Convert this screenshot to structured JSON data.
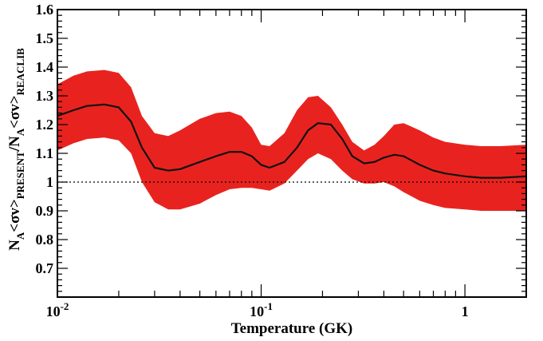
{
  "chart_data": {
    "type": "line",
    "xlabel": "Temperature (GK)",
    "ylabel": {
      "parts": [
        "N",
        "A",
        "<σv>",
        "PRESENT",
        "/N",
        "A",
        "<σv>",
        "REACLIB"
      ]
    },
    "xscale": "log",
    "xlim": [
      0.01,
      2.0
    ],
    "ylim": [
      0.6,
      1.6
    ],
    "x_ticks": [
      {
        "value": 0.01,
        "base": "10",
        "exp": "-2"
      },
      {
        "value": 0.1,
        "base": "10",
        "exp": "-1"
      },
      {
        "value": 1,
        "label": "1"
      }
    ],
    "y_ticks": [
      {
        "value": 0.7,
        "label": "0.7"
      },
      {
        "value": 0.8,
        "label": "0.8"
      },
      {
        "value": 0.9,
        "label": "0.9"
      },
      {
        "value": 1.0,
        "label": "1"
      },
      {
        "value": 1.1,
        "label": "1.1"
      },
      {
        "value": 1.2,
        "label": "1.2"
      },
      {
        "value": 1.3,
        "label": "1.3"
      },
      {
        "value": 1.4,
        "label": "1.4"
      },
      {
        "value": 1.5,
        "label": "1.5"
      },
      {
        "value": 1.6,
        "label": "1.6"
      }
    ],
    "reference_line": {
      "y": 1.0,
      "style": "dotted"
    },
    "band_color": "#e8231f",
    "line_color": "#111111",
    "x": [
      0.01,
      0.012,
      0.014,
      0.017,
      0.02,
      0.023,
      0.026,
      0.03,
      0.035,
      0.04,
      0.05,
      0.06,
      0.07,
      0.08,
      0.09,
      0.1,
      0.11,
      0.13,
      0.15,
      0.17,
      0.19,
      0.22,
      0.25,
      0.28,
      0.32,
      0.36,
      0.4,
      0.45,
      0.5,
      0.6,
      0.7,
      0.8,
      1.0,
      1.2,
      1.5,
      2.0
    ],
    "series": [
      {
        "name": "ratio",
        "role": "line",
        "values": [
          1.23,
          1.25,
          1.265,
          1.27,
          1.26,
          1.21,
          1.12,
          1.05,
          1.04,
          1.045,
          1.07,
          1.09,
          1.105,
          1.105,
          1.09,
          1.06,
          1.05,
          1.07,
          1.12,
          1.18,
          1.205,
          1.2,
          1.15,
          1.09,
          1.065,
          1.07,
          1.085,
          1.095,
          1.09,
          1.06,
          1.04,
          1.03,
          1.02,
          1.015,
          1.015,
          1.02
        ]
      },
      {
        "name": "upper",
        "role": "band_upper",
        "values": [
          1.34,
          1.37,
          1.385,
          1.39,
          1.38,
          1.33,
          1.23,
          1.17,
          1.16,
          1.18,
          1.22,
          1.24,
          1.245,
          1.23,
          1.19,
          1.13,
          1.125,
          1.17,
          1.25,
          1.295,
          1.3,
          1.26,
          1.2,
          1.14,
          1.11,
          1.13,
          1.16,
          1.2,
          1.205,
          1.18,
          1.155,
          1.14,
          1.13,
          1.125,
          1.125,
          1.13
        ]
      },
      {
        "name": "lower",
        "role": "band_lower",
        "values": [
          1.11,
          1.135,
          1.15,
          1.155,
          1.145,
          1.1,
          1.0,
          0.93,
          0.905,
          0.905,
          0.925,
          0.955,
          0.975,
          0.98,
          0.98,
          0.975,
          0.97,
          0.995,
          1.04,
          1.08,
          1.1,
          1.08,
          1.04,
          1.01,
          0.995,
          0.995,
          1.0,
          0.985,
          0.965,
          0.935,
          0.92,
          0.91,
          0.905,
          0.9,
          0.9,
          0.9
        ]
      }
    ]
  }
}
